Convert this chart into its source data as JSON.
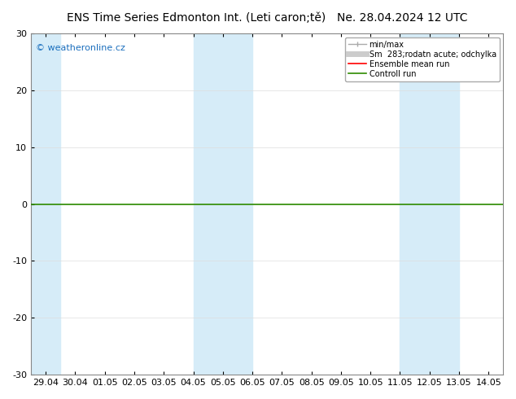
{
  "title_left": "ENS Time Series Edmonton Int. (Leti caron;tě)",
  "title_right": "Ne. 28.04.2024 12 UTC",
  "watermark": "© weatheronline.cz",
  "ylim": [
    -30,
    30
  ],
  "yticks": [
    -30,
    -20,
    -10,
    0,
    10,
    20,
    30
  ],
  "x_tick_labels": [
    "29.04",
    "30.04",
    "01.05",
    "02.05",
    "03.05",
    "04.05",
    "05.05",
    "06.05",
    "07.05",
    "08.05",
    "09.05",
    "10.05",
    "11.05",
    "12.05",
    "13.05",
    "14.05"
  ],
  "shade_ranges": [
    [
      -0.5,
      0.5
    ],
    [
      5.0,
      7.0
    ],
    [
      12.0,
      14.0
    ]
  ],
  "shade_color": "#d6ecf8",
  "hline_y": 0,
  "hline_color": "#2e8b00",
  "background_color": "#ffffff",
  "plot_bg_color": "#ffffff",
  "title_fontsize": 10,
  "tick_fontsize": 8,
  "watermark_color": "#1a6ebd",
  "watermark_fontsize": 8,
  "legend_fontsize": 7,
  "spine_color": "#888888",
  "legend_label_minmax": "min/max",
  "legend_label_sm": "Sm  283;rodatn acute; odchylka",
  "legend_label_ensemble": "Ensemble mean run",
  "legend_label_control": "Controll run",
  "legend_color_minmax": "#aaaaaa",
  "legend_color_sm": "#cccccc",
  "legend_color_ensemble": "#ff0000",
  "legend_color_control": "#2e8b00"
}
